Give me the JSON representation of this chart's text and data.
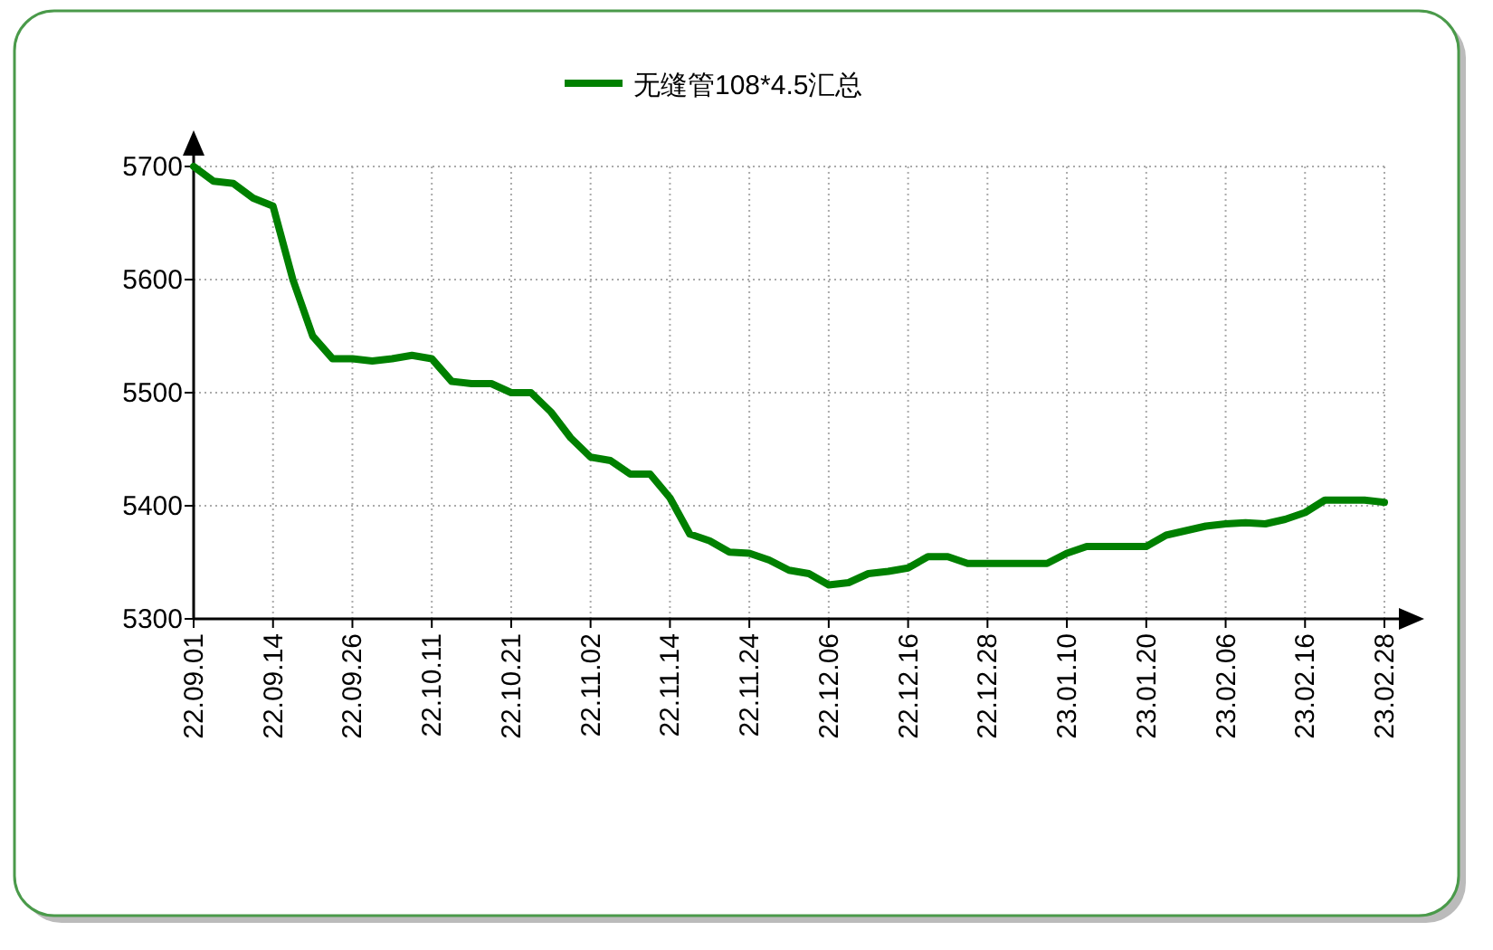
{
  "chart_data": {
    "type": "line",
    "legend": "top",
    "grid": true,
    "marker": "none",
    "line_style": "solid",
    "ylim": [
      5300,
      5700
    ],
    "yticks": [
      5300,
      5400,
      5500,
      5600,
      5700
    ],
    "categories": [
      "22.09.01",
      null,
      null,
      null,
      "22.09.14",
      null,
      null,
      null,
      "22.09.26",
      null,
      null,
      null,
      "22.10.11",
      null,
      null,
      null,
      "22.10.21",
      null,
      null,
      null,
      "22.11.02",
      null,
      null,
      null,
      "22.11.14",
      null,
      null,
      null,
      "22.11.24",
      null,
      null,
      null,
      "22.12.06",
      null,
      null,
      null,
      "22.12.16",
      null,
      null,
      null,
      "22.12.28",
      null,
      null,
      null,
      "23.01.10",
      null,
      null,
      null,
      "23.01.20",
      null,
      null,
      null,
      "23.02.06",
      null,
      null,
      null,
      "23.02.16",
      null,
      null,
      null,
      "23.02.28"
    ],
    "series": [
      {
        "name": "无缝管108*4.5汇总",
        "color": "#008000",
        "values": [
          5700,
          5687,
          5685,
          5672,
          5665,
          5600,
          5550,
          5530,
          5530,
          5528,
          5530,
          5533,
          5530,
          5510,
          5508,
          5508,
          5500,
          5500,
          5483,
          5460,
          5443,
          5440,
          5428,
          5428,
          5407,
          5375,
          5369,
          5359,
          5358,
          5352,
          5343,
          5340,
          5330,
          5332,
          5340,
          5342,
          5345,
          5355,
          5355,
          5349,
          5349,
          5349,
          5349,
          5349,
          5358,
          5364,
          5364,
          5364,
          5364,
          5374,
          5378,
          5382,
          5384,
          5385,
          5384,
          5388,
          5394,
          5405,
          5405,
          5405,
          5403
        ]
      }
    ]
  }
}
